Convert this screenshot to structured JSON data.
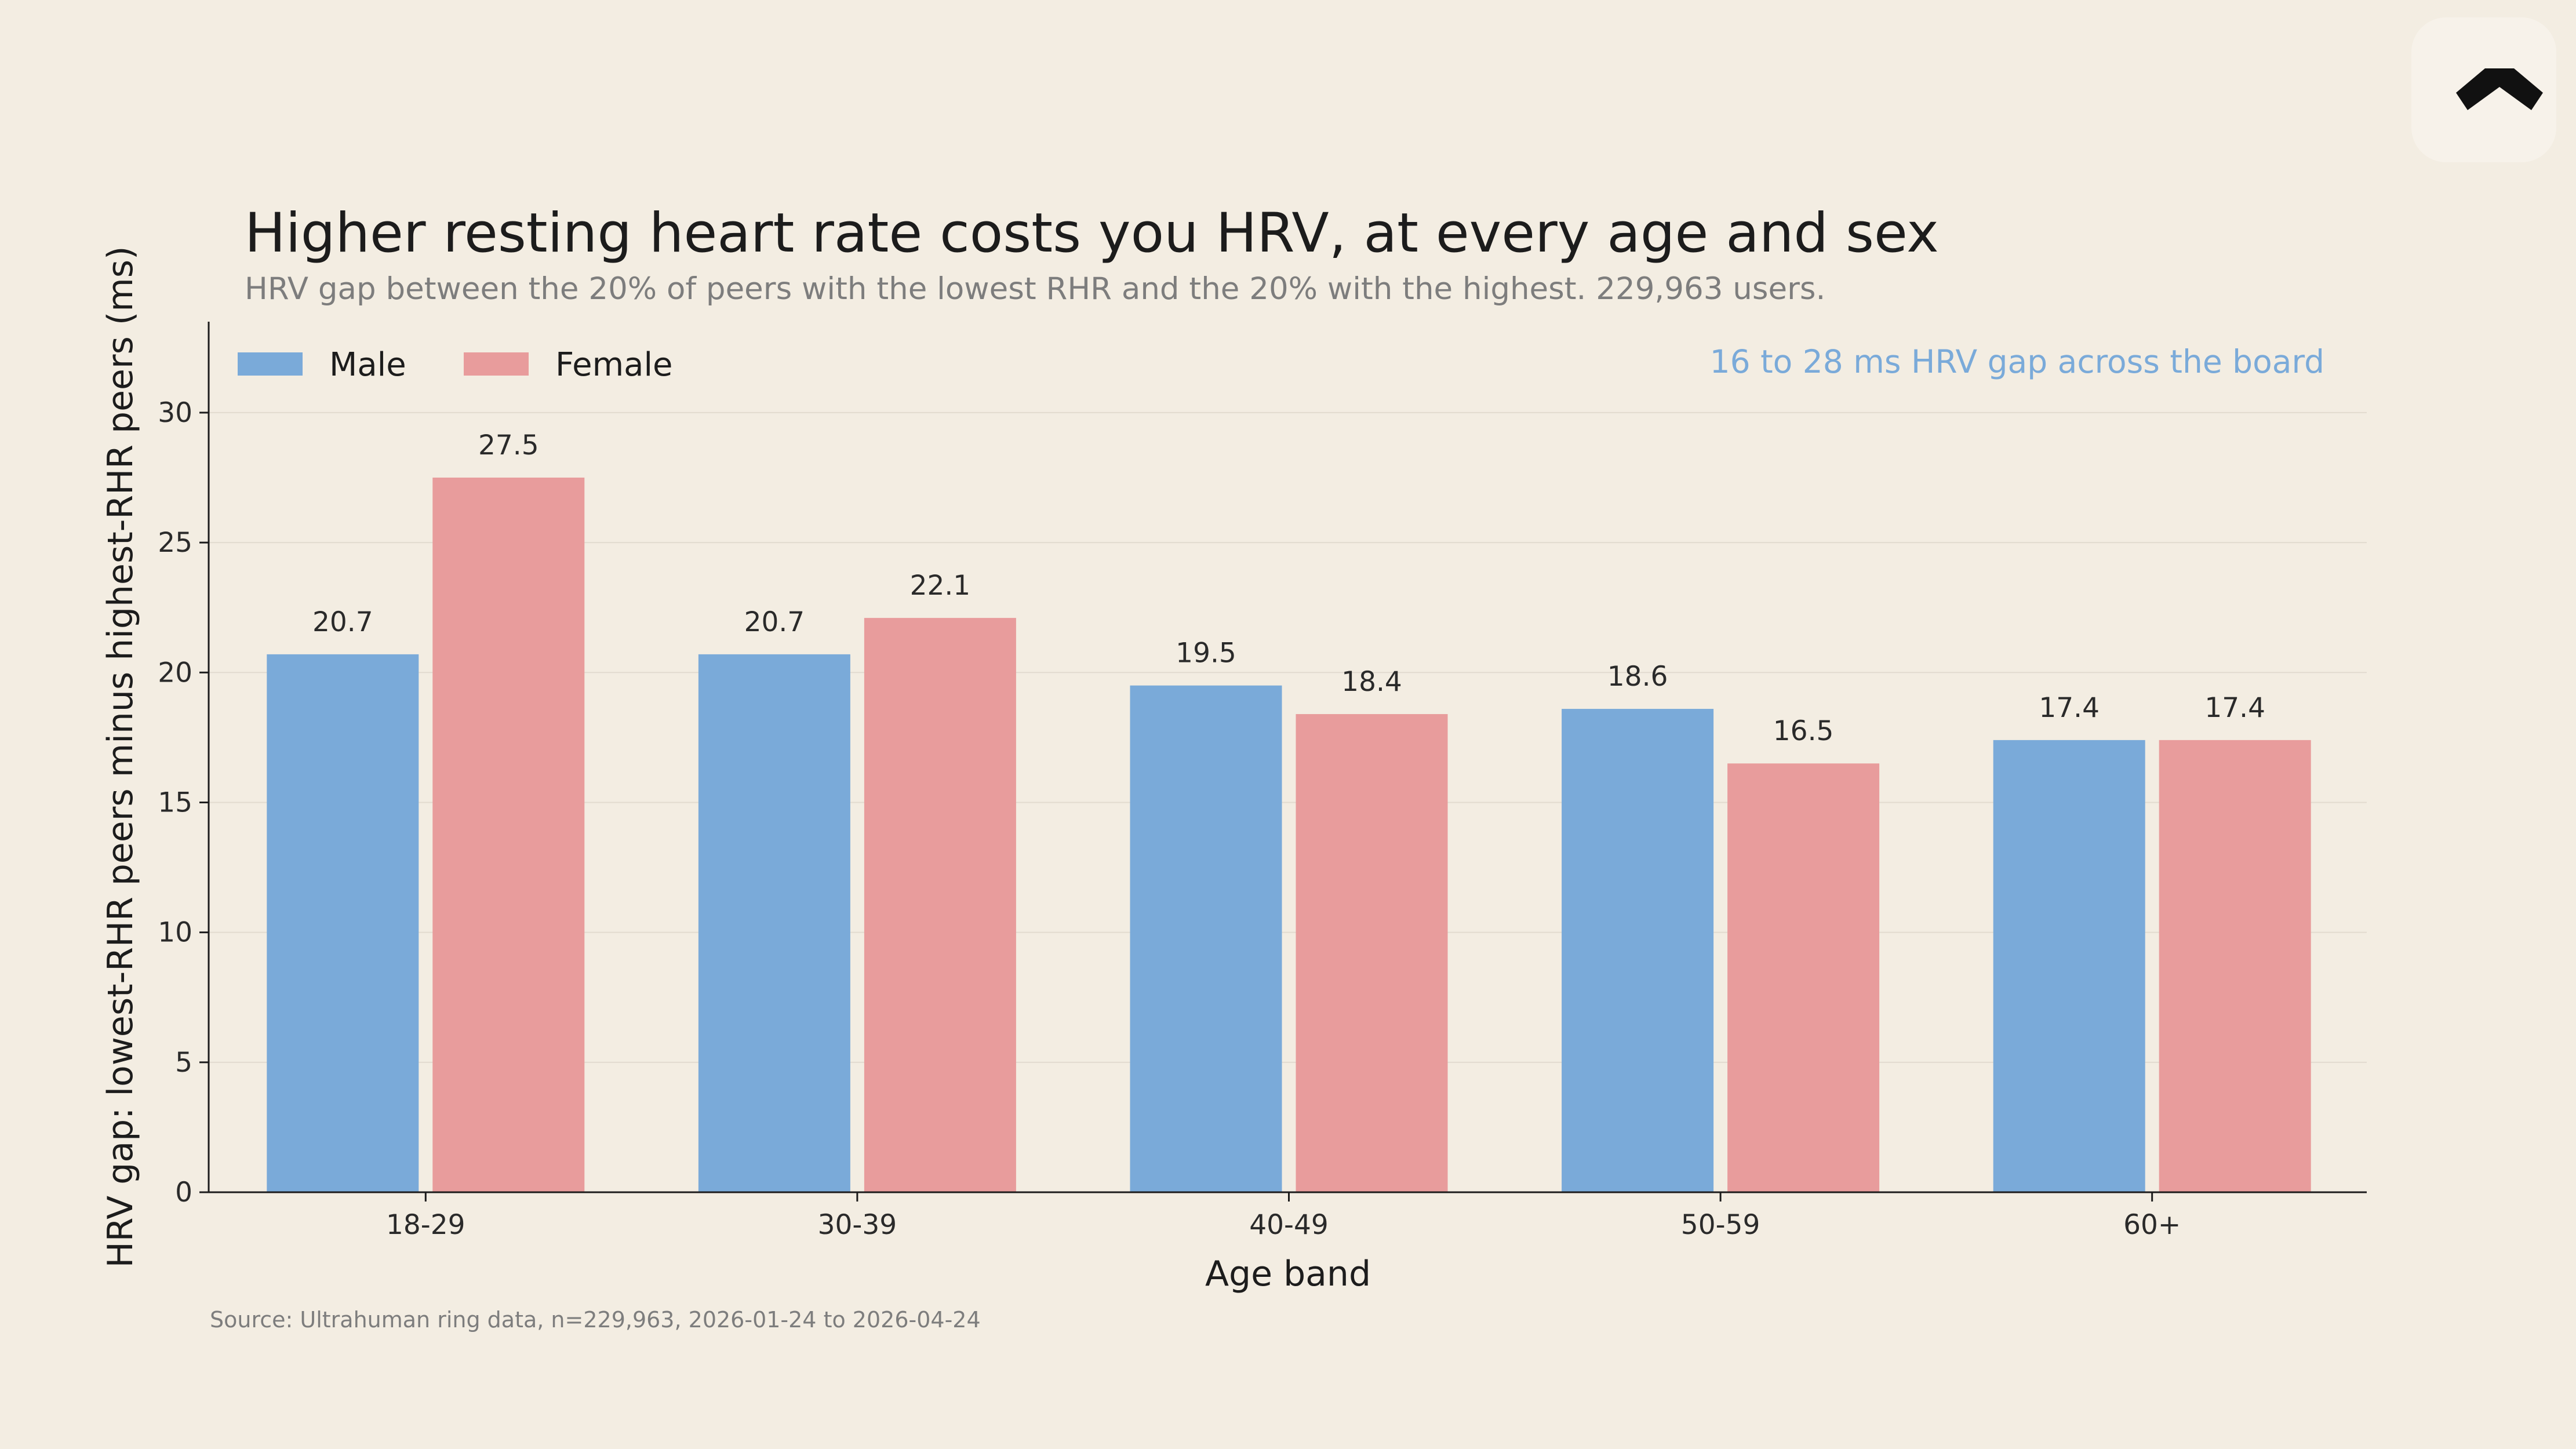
{
  "logo": {
    "icon": "ultrahuman-logo-icon"
  },
  "chart_data": {
    "type": "bar",
    "title": "Higher resting heart rate costs you HRV, at every age and sex",
    "subtitle": "HRV gap between the 20% of peers with the lowest RHR and the 20% with the highest. 229,963 users.",
    "xlabel": "Age band",
    "ylabel": "HRV gap: lowest-RHR peers minus highest-RHR peers (ms)",
    "categories": [
      "18-29",
      "30-39",
      "40-49",
      "50-59",
      "60+"
    ],
    "series": [
      {
        "name": "Male",
        "color": "#7aaad9",
        "values": [
          20.7,
          20.7,
          19.5,
          18.6,
          17.4
        ]
      },
      {
        "name": "Female",
        "color": "#e89c9c",
        "values": [
          27.5,
          22.1,
          18.4,
          16.5,
          17.4
        ]
      }
    ],
    "ylim": [
      0,
      33.5
    ],
    "yticks": [
      0,
      5,
      10,
      15,
      20,
      25,
      30
    ],
    "grid": true,
    "legend": "top-left",
    "annotation": {
      "text": "16 to 28 ms HRV gap across the board",
      "color": "#7aaad9"
    },
    "source": "Source: Ultrahuman ring data, n=229,963, 2026-01-24 to 2026-04-24"
  }
}
